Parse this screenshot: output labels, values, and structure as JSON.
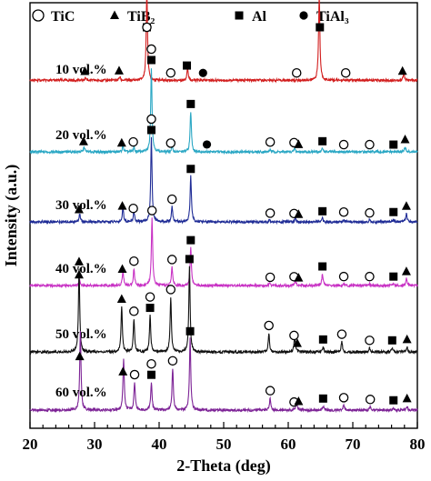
{
  "chart_data": {
    "type": "line",
    "title": "",
    "xlabel": "2-Theta (deg)",
    "ylabel": "Intensity (a.u.)",
    "xlim": [
      20,
      80
    ],
    "xticks": [
      20,
      30,
      40,
      50,
      60,
      70,
      80
    ],
    "y_ticks_shown": false,
    "grid": false,
    "legend": {
      "placement": "top",
      "entries": [
        {
          "marker": "open-circle",
          "label": "TiC"
        },
        {
          "marker": "triangle",
          "label": "TiB₂"
        },
        {
          "marker": "square",
          "label": "Al"
        },
        {
          "marker": "filled-circle",
          "label": "TiAl₃"
        }
      ]
    },
    "series": [
      {
        "name": "10 vol.%",
        "color": "#d21e1e",
        "baseline": 0.62,
        "height": 1.65,
        "peaks": [
          [
            28.6,
            0.03
          ],
          [
            33.9,
            0.04
          ],
          [
            38.1,
            1.0
          ],
          [
            44.4,
            0.14
          ],
          [
            64.8,
            0.95
          ],
          [
            77.9,
            0.08
          ]
        ],
        "markers": [
          {
            "x": 28.5,
            "s": "triangle",
            "lv": 1
          },
          {
            "x": 33.8,
            "s": "triangle",
            "lv": 1
          },
          {
            "x": 38.1,
            "s": "square",
            "lv": 1
          },
          {
            "x": 38.1,
            "s": "open-circle",
            "lv": 2
          },
          {
            "x": 41.8,
            "s": "open-circle",
            "lv": 1
          },
          {
            "x": 44.3,
            "s": "square",
            "lv": 1
          },
          {
            "x": 46.8,
            "s": "filled-circle",
            "lv": 1
          },
          {
            "x": 61.3,
            "s": "open-circle",
            "lv": 1
          },
          {
            "x": 64.9,
            "s": "square",
            "lv": 1
          },
          {
            "x": 68.9,
            "s": "open-circle",
            "lv": 1
          },
          {
            "x": 77.7,
            "s": "triangle",
            "lv": 1
          }
        ]
      },
      {
        "name": "20 vol.%",
        "color": "#2aa7c4",
        "baseline": 0.55,
        "height": 1.55,
        "peaks": [
          [
            28.4,
            0.06
          ],
          [
            34.4,
            0.07
          ],
          [
            36.1,
            0.05
          ],
          [
            38.8,
            1.0
          ],
          [
            42.0,
            0.06
          ],
          [
            44.9,
            0.48
          ],
          [
            57.2,
            0.03
          ],
          [
            61.0,
            0.04
          ],
          [
            65.3,
            0.04
          ],
          [
            78.1,
            0.06
          ]
        ],
        "markers": [
          {
            "x": 28.3,
            "s": "triangle",
            "lv": 1
          },
          {
            "x": 34.2,
            "s": "triangle",
            "lv": 1
          },
          {
            "x": 36.0,
            "s": "open-circle",
            "lv": 1
          },
          {
            "x": 38.8,
            "s": "square",
            "lv": 1
          },
          {
            "x": 38.8,
            "s": "open-circle",
            "lv": 2
          },
          {
            "x": 41.8,
            "s": "open-circle",
            "lv": 1
          },
          {
            "x": 44.9,
            "s": "square",
            "lv": 1
          },
          {
            "x": 47.4,
            "s": "filled-circle",
            "lv": 1
          },
          {
            "x": 57.2,
            "s": "open-circle",
            "lv": 1
          },
          {
            "x": 60.9,
            "s": "open-circle",
            "lv": 1
          },
          {
            "x": 61.6,
            "s": "triangle",
            "lv": 1
          },
          {
            "x": 65.3,
            "s": "square",
            "lv": 1
          },
          {
            "x": 68.6,
            "s": "open-circle",
            "lv": 1
          },
          {
            "x": 72.6,
            "s": "open-circle",
            "lv": 1
          },
          {
            "x": 76.3,
            "s": "square",
            "lv": 1
          },
          {
            "x": 78.1,
            "s": "triangle",
            "lv": 1
          }
        ]
      },
      {
        "name": "30 vol.%",
        "color": "#1f2c96",
        "baseline": 0.55,
        "height": 1.55,
        "peaks": [
          [
            27.7,
            0.1
          ],
          [
            34.4,
            0.17
          ],
          [
            36.1,
            0.12
          ],
          [
            38.8,
            1.0
          ],
          [
            42.0,
            0.18
          ],
          [
            44.9,
            0.54
          ],
          [
            57.1,
            0.03
          ],
          [
            61.1,
            0.05
          ],
          [
            65.3,
            0.04
          ],
          [
            68.6,
            0.03
          ],
          [
            72.6,
            0.02
          ],
          [
            76.3,
            0.03
          ],
          [
            78.3,
            0.1
          ]
        ],
        "markers": [
          {
            "x": 27.6,
            "s": "triangle",
            "lv": 1
          },
          {
            "x": 34.3,
            "s": "triangle",
            "lv": 1
          },
          {
            "x": 36.0,
            "s": "open-circle",
            "lv": 1
          },
          {
            "x": 38.8,
            "s": "square",
            "lv": 1
          },
          {
            "x": 38.8,
            "s": "open-circle",
            "lv": 2
          },
          {
            "x": 42.0,
            "s": "open-circle",
            "lv": 1
          },
          {
            "x": 44.9,
            "s": "square",
            "lv": 1
          },
          {
            "x": 57.2,
            "s": "open-circle",
            "lv": 1
          },
          {
            "x": 60.9,
            "s": "open-circle",
            "lv": 1
          },
          {
            "x": 61.6,
            "s": "triangle",
            "lv": 1
          },
          {
            "x": 65.3,
            "s": "square",
            "lv": 1
          },
          {
            "x": 68.6,
            "s": "open-circle",
            "lv": 1
          },
          {
            "x": 72.6,
            "s": "open-circle",
            "lv": 1
          },
          {
            "x": 76.3,
            "s": "square",
            "lv": 1
          },
          {
            "x": 78.3,
            "s": "triangle",
            "lv": 1
          }
        ]
      },
      {
        "name": "40 vol.%",
        "color": "#c832c4",
        "baseline": 0.55,
        "height": 1.55,
        "peaks": [
          [
            27.7,
            0.07
          ],
          [
            34.4,
            0.18
          ],
          [
            36.1,
            0.2
          ],
          [
            38.9,
            0.8
          ],
          [
            42.0,
            0.22
          ],
          [
            44.9,
            0.45
          ],
          [
            57.1,
            0.02
          ],
          [
            61.1,
            0.07
          ],
          [
            65.3,
            0.14
          ],
          [
            68.6,
            0.02
          ],
          [
            72.6,
            0.02
          ],
          [
            76.3,
            0.02
          ],
          [
            78.3,
            0.08
          ]
        ],
        "markers": [
          {
            "x": 27.6,
            "s": "triangle",
            "lv": 1
          },
          {
            "x": 34.3,
            "s": "triangle",
            "lv": 1
          },
          {
            "x": 36.1,
            "s": "open-circle",
            "lv": 1
          },
          {
            "x": 38.9,
            "s": "open-circle",
            "lv": 1
          },
          {
            "x": 42.0,
            "s": "open-circle",
            "lv": 1
          },
          {
            "x": 44.9,
            "s": "square",
            "lv": 1
          },
          {
            "x": 57.2,
            "s": "open-circle",
            "lv": 1
          },
          {
            "x": 60.9,
            "s": "open-circle",
            "lv": 1
          },
          {
            "x": 61.6,
            "s": "triangle",
            "lv": 1
          },
          {
            "x": 65.3,
            "s": "square",
            "lv": 1
          },
          {
            "x": 68.6,
            "s": "open-circle",
            "lv": 1
          },
          {
            "x": 72.6,
            "s": "open-circle",
            "lv": 1
          },
          {
            "x": 76.3,
            "s": "square",
            "lv": 1
          },
          {
            "x": 78.3,
            "s": "triangle",
            "lv": 1
          }
        ]
      },
      {
        "name": "50 vol.%",
        "color": "#111111",
        "baseline": 0.45,
        "height": 1.6,
        "peaks": [
          [
            27.6,
            0.95
          ],
          [
            34.2,
            0.52
          ],
          [
            36.1,
            0.38
          ],
          [
            38.6,
            0.42
          ],
          [
            41.8,
            0.63
          ],
          [
            44.7,
            0.98
          ],
          [
            57.0,
            0.22
          ],
          [
            61.0,
            0.18
          ],
          [
            65.4,
            0.06
          ],
          [
            68.3,
            0.12
          ],
          [
            72.6,
            0.05
          ],
          [
            76.1,
            0.05
          ],
          [
            78.4,
            0.06
          ]
        ],
        "markers": [
          {
            "x": 27.6,
            "s": "triangle",
            "lv": 1
          },
          {
            "x": 34.2,
            "s": "triangle",
            "lv": 1
          },
          {
            "x": 36.1,
            "s": "open-circle",
            "lv": 1
          },
          {
            "x": 38.6,
            "s": "square",
            "lv": 1
          },
          {
            "x": 38.6,
            "s": "open-circle",
            "lv": 2
          },
          {
            "x": 41.8,
            "s": "open-circle",
            "lv": 1
          },
          {
            "x": 44.7,
            "s": "square",
            "lv": 1
          },
          {
            "x": 57.0,
            "s": "open-circle",
            "lv": 1
          },
          {
            "x": 60.9,
            "s": "open-circle",
            "lv": 1
          },
          {
            "x": 61.4,
            "s": "triangle",
            "lv": 1
          },
          {
            "x": 65.4,
            "s": "square",
            "lv": 1
          },
          {
            "x": 68.3,
            "s": "open-circle",
            "lv": 1
          },
          {
            "x": 72.6,
            "s": "open-circle",
            "lv": 1
          },
          {
            "x": 76.1,
            "s": "square",
            "lv": 1
          },
          {
            "x": 78.4,
            "s": "triangle",
            "lv": 1
          }
        ]
      },
      {
        "name": "60 vol.%",
        "color": "#7d2396",
        "baseline": 0.45,
        "height": 1.6,
        "peaks": [
          [
            27.8,
            0.9
          ],
          [
            34.5,
            0.6
          ],
          [
            36.2,
            0.32
          ],
          [
            38.8,
            0.32
          ],
          [
            42.1,
            0.48
          ],
          [
            44.8,
            0.82
          ],
          [
            57.2,
            0.14
          ],
          [
            61.3,
            0.12
          ],
          [
            65.4,
            0.05
          ],
          [
            68.6,
            0.06
          ],
          [
            72.7,
            0.04
          ],
          [
            76.3,
            0.03
          ],
          [
            78.4,
            0.05
          ]
        ],
        "markers": [
          {
            "x": 27.7,
            "s": "triangle",
            "lv": 1
          },
          {
            "x": 34.4,
            "s": "triangle",
            "lv": 1
          },
          {
            "x": 36.2,
            "s": "open-circle",
            "lv": 1
          },
          {
            "x": 38.8,
            "s": "square",
            "lv": 1
          },
          {
            "x": 38.8,
            "s": "open-circle",
            "lv": 2
          },
          {
            "x": 42.1,
            "s": "open-circle",
            "lv": 1
          },
          {
            "x": 44.8,
            "s": "square",
            "lv": 1
          },
          {
            "x": 57.2,
            "s": "open-circle",
            "lv": 1
          },
          {
            "x": 60.9,
            "s": "open-circle",
            "lv": 1
          },
          {
            "x": 61.6,
            "s": "triangle",
            "lv": 1
          },
          {
            "x": 65.4,
            "s": "square",
            "lv": 1
          },
          {
            "x": 68.6,
            "s": "open-circle",
            "lv": 1
          },
          {
            "x": 72.7,
            "s": "open-circle",
            "lv": 1
          },
          {
            "x": 76.3,
            "s": "square",
            "lv": 1
          },
          {
            "x": 78.4,
            "s": "triangle",
            "lv": 1
          }
        ]
      }
    ]
  }
}
